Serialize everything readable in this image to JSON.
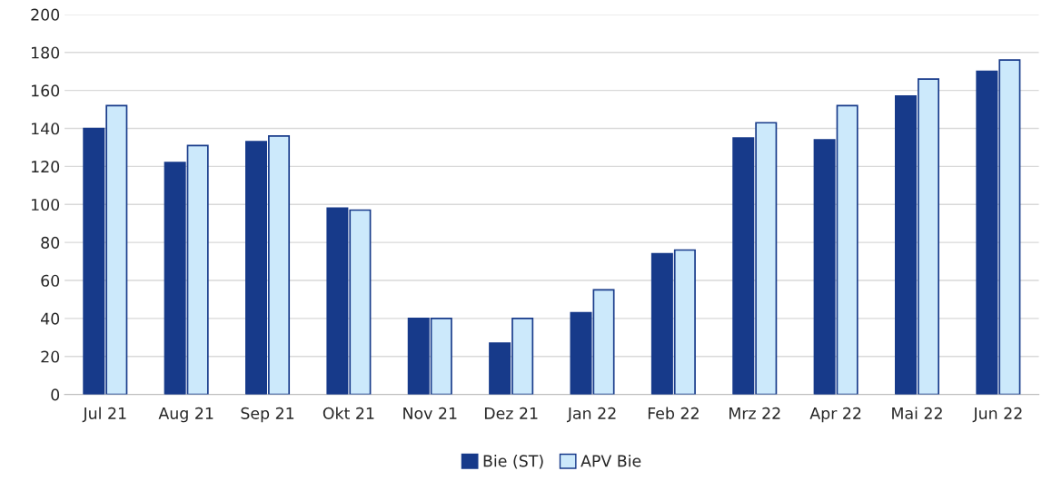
{
  "chart_data": {
    "type": "bar",
    "categories": [
      "Jul 21",
      "Aug 21",
      "Sep 21",
      "Okt 21",
      "Nov 21",
      "Dez 21",
      "Jan 22",
      "Feb 22",
      "Mrz 22",
      "Apr 22",
      "Mai 22",
      "Jun 22"
    ],
    "series": [
      {
        "name": "Bie (ST)",
        "color": "#173a8a",
        "values": [
          140,
          122,
          133,
          98,
          40,
          27,
          43,
          74,
          135,
          134,
          157,
          170
        ]
      },
      {
        "name": "APV Bie",
        "color": "#cce9fb",
        "values": [
          152,
          131,
          136,
          97,
          40,
          40,
          55,
          76,
          143,
          152,
          166,
          176
        ]
      }
    ],
    "ylim": [
      0,
      200
    ],
    "yticks": [
      0,
      20,
      40,
      60,
      80,
      100,
      120,
      140,
      160,
      180,
      200
    ],
    "grid": "y",
    "legend": "bottom"
  }
}
